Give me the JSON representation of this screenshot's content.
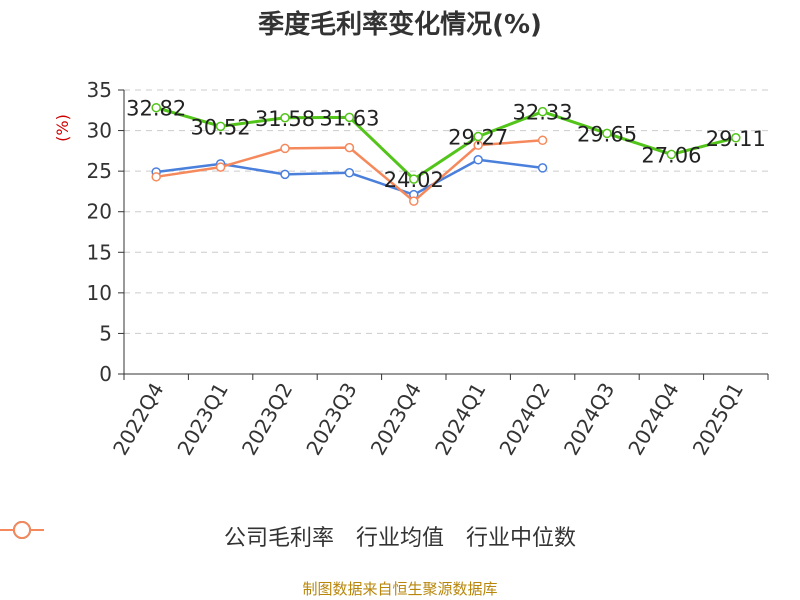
{
  "chart_data": {
    "type": "line",
    "title": "季度毛利率变化情况(%)",
    "ylabel": "(%)",
    "xlabel": "",
    "ylim": [
      0,
      35
    ],
    "yticks": [
      0,
      5,
      10,
      15,
      20,
      25,
      30,
      35
    ],
    "grid": true,
    "legend_position": "bottom",
    "categories": [
      "2022Q4",
      "2023Q1",
      "2023Q2",
      "2023Q3",
      "2023Q4",
      "2024Q1",
      "2024Q2",
      "2024Q3",
      "2024Q4",
      "2025Q1"
    ],
    "series": [
      {
        "name": "公司毛利率",
        "color": "#52c41a",
        "values": [
          32.82,
          30.52,
          31.58,
          31.63,
          24.02,
          29.27,
          32.33,
          29.65,
          27.06,
          29.11
        ],
        "labels": [
          "32.82",
          "30.52",
          "31.58",
          "31.63",
          "24.02",
          "29.27",
          "32.33",
          "29.65",
          "27.06",
          "29.11"
        ]
      },
      {
        "name": "行业均值",
        "color": "#4a7fdc",
        "values": [
          24.9,
          25.9,
          24.6,
          24.8,
          22.1,
          26.4,
          25.4,
          null,
          null,
          null
        ]
      },
      {
        "name": "行业中位数",
        "color": "#f5895c",
        "values": [
          24.3,
          25.5,
          27.8,
          27.9,
          21.3,
          28.2,
          28.8,
          null,
          null,
          null
        ]
      }
    ]
  },
  "source_text": "制图数据来自恒生聚源数据库",
  "colors": {
    "axis": "#333333",
    "grid": "#cccccc",
    "ylabel": "#cc0000"
  }
}
